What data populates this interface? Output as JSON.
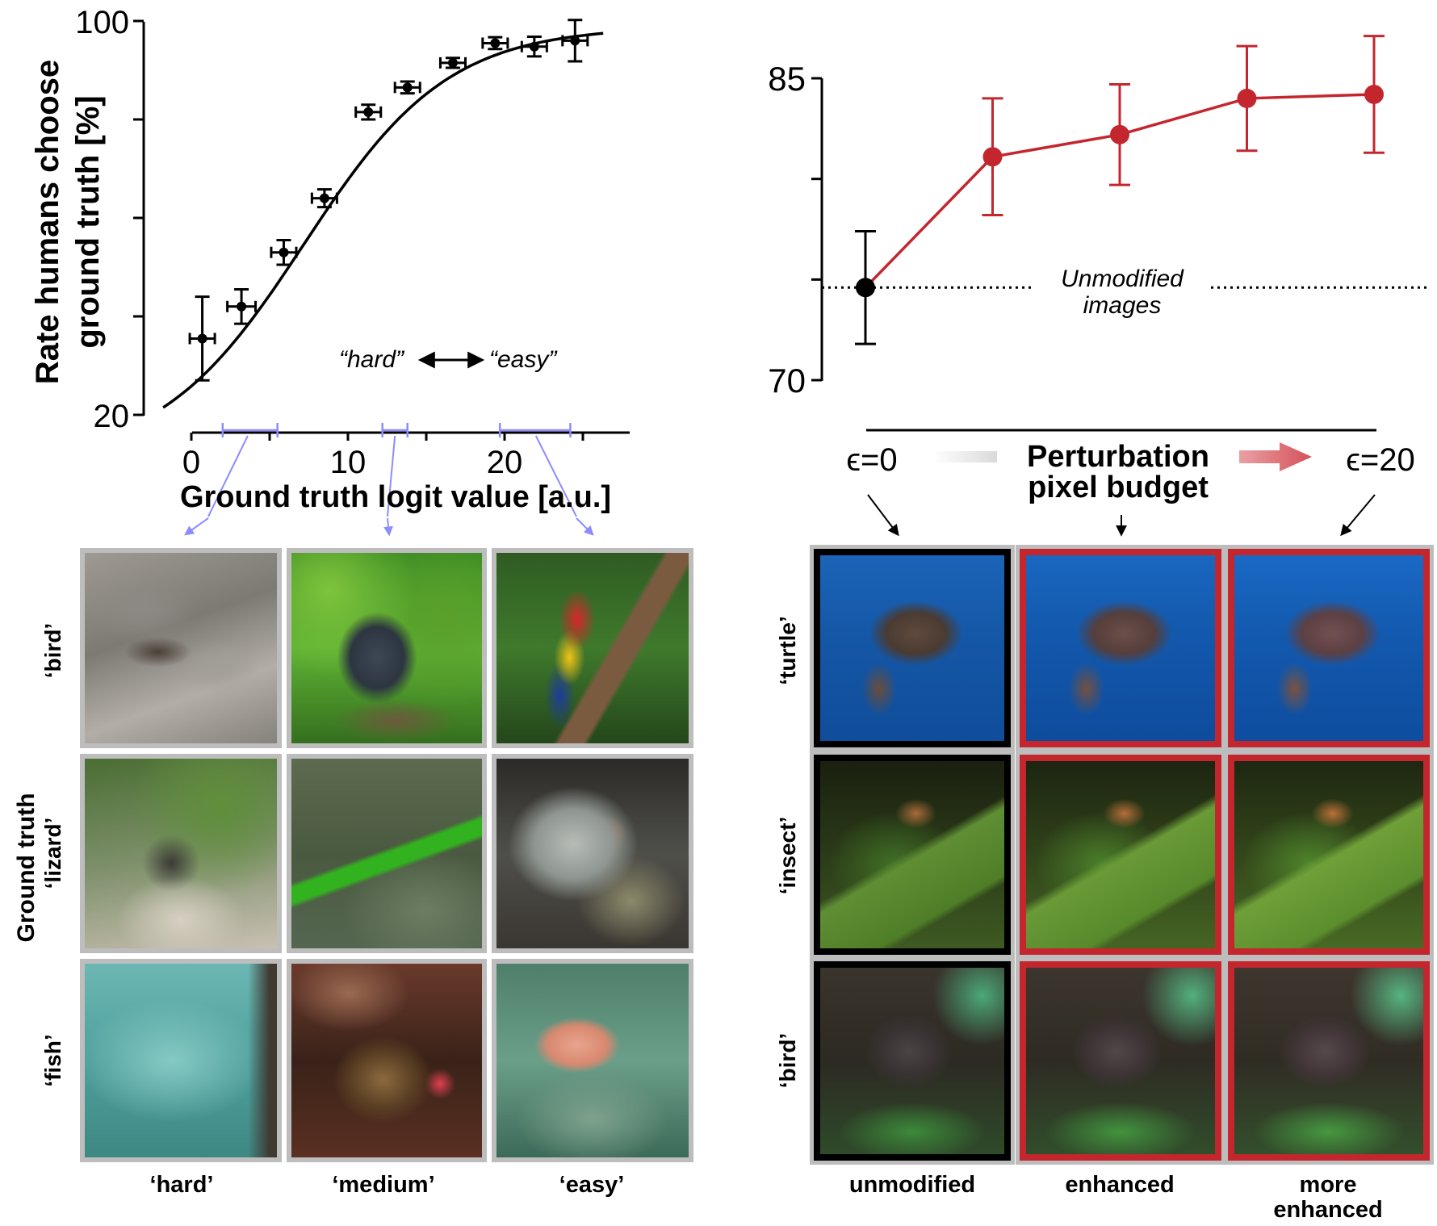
{
  "chart_data": [
    {
      "type": "scatter",
      "ylabel_line1": "Rate humans choose",
      "ylabel_line2": "ground truth [%]",
      "xlabel": "Ground truth logit value [a.u.]",
      "xticks": [
        "0",
        "10",
        "20"
      ],
      "yticks": [
        "20",
        "100"
      ],
      "ylim": [
        20,
        100
      ],
      "xlim": [
        0,
        28
      ],
      "annotation_hard": "“hard”",
      "annotation_easy": "“easy”",
      "points": [
        {
          "x": 0.7,
          "y": 35.5,
          "xerr": 0.8,
          "yerr": 8.5
        },
        {
          "x": 3.2,
          "y": 42.0,
          "xerr": 0.9,
          "yerr": 3.5
        },
        {
          "x": 5.9,
          "y": 53.0,
          "xerr": 0.8,
          "yerr": 2.5
        },
        {
          "x": 8.5,
          "y": 64.0,
          "xerr": 0.8,
          "yerr": 1.8
        },
        {
          "x": 11.3,
          "y": 81.5,
          "xerr": 0.8,
          "yerr": 1.5
        },
        {
          "x": 13.8,
          "y": 86.5,
          "xerr": 0.8,
          "yerr": 1.2
        },
        {
          "x": 16.7,
          "y": 91.5,
          "xerr": 0.8,
          "yerr": 1.0
        },
        {
          "x": 19.4,
          "y": 95.5,
          "xerr": 0.8,
          "yerr": 1.2
        },
        {
          "x": 21.9,
          "y": 94.8,
          "xerr": 0.8,
          "yerr": 2.0
        },
        {
          "x": 24.5,
          "y": 96.0,
          "xerr": 0.8,
          "yerr": 4.2
        }
      ],
      "fit_curve": {
        "x0": -1.8,
        "x1": 26.3,
        "y0": 21.5,
        "y1": 97.5
      },
      "bins": [
        {
          "name": "hard",
          "x_min": 2.0,
          "x_max": 5.5
        },
        {
          "name": "medium",
          "x_min": 12.2,
          "x_max": 13.8
        },
        {
          "name": "easy",
          "x_min": 19.7,
          "x_max": 24.2
        }
      ]
    },
    {
      "type": "line",
      "yticks": [
        "70",
        "85"
      ],
      "ylim": [
        70,
        85
      ],
      "reference_label_line1": "Unmodified",
      "reference_label_line2": "images",
      "reference_value": 74.6,
      "points": [
        {
          "x": 0,
          "y": 74.6,
          "err": 2.8,
          "color": "#000000"
        },
        {
          "x": 1,
          "y": 81.1,
          "err": 2.9,
          "color": "#c4262e"
        },
        {
          "x": 2,
          "y": 82.2,
          "err": 2.5,
          "color": "#c4262e"
        },
        {
          "x": 3,
          "y": 84.0,
          "err": 2.6,
          "color": "#c4262e"
        },
        {
          "x": 4,
          "y": 84.2,
          "err": 2.9,
          "color": "#c4262e"
        }
      ],
      "line_color": "#c4262e"
    }
  ],
  "budget": {
    "eps_start": "ϵ=0",
    "eps_end": "ϵ=20",
    "title_line1": "Perturbation",
    "title_line2": "pixel budget"
  },
  "left_grid": {
    "ylabel": "Ground truth",
    "rows": [
      "‘bird’",
      "‘lizard’",
      "‘fish’"
    ],
    "cols": [
      "‘hard’",
      "‘medium’",
      "‘easy’"
    ]
  },
  "right_grid": {
    "rows": [
      "‘turtle’",
      "‘insect’",
      "‘bird’"
    ],
    "cols": [
      "unmodified",
      "enhanced"
    ],
    "col3_line1": "more",
    "col3_line2": "enhanced"
  },
  "colors": {
    "red": "#c4262e",
    "bin": "#8c8cff"
  }
}
